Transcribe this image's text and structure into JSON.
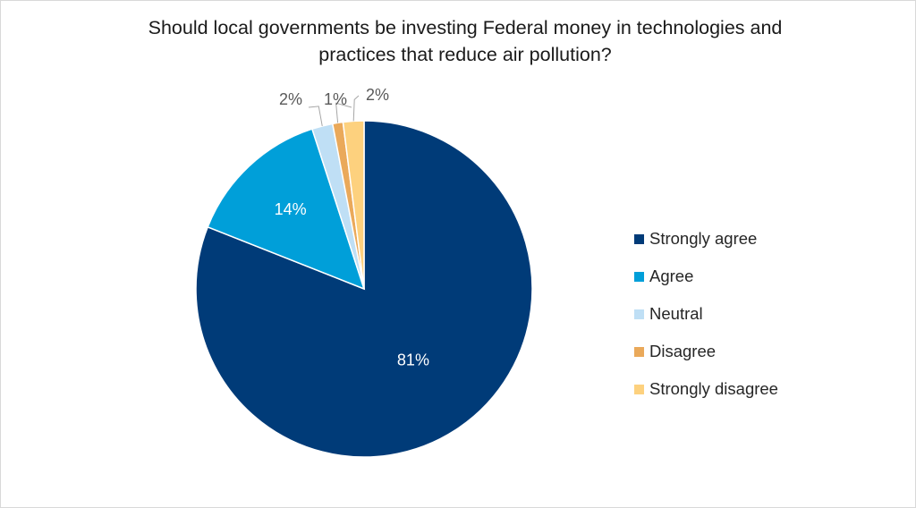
{
  "chart_data": {
    "type": "pie",
    "title_lines": [
      "Should local governments be investing Federal money in technologies and",
      "practices that reduce air pollution?"
    ],
    "categories": [
      "Strongly agree",
      "Agree",
      "Neutral",
      "Disagree",
      "Strongly disagree"
    ],
    "values": [
      81,
      14,
      2,
      1,
      2
    ],
    "data_labels": [
      "81%",
      "14%",
      "2%",
      "1%",
      "2%"
    ],
    "colors": [
      "#003b78",
      "#009fd9",
      "#bfdff5",
      "#eaa95a",
      "#fdd17e"
    ],
    "legend_position": "right"
  }
}
